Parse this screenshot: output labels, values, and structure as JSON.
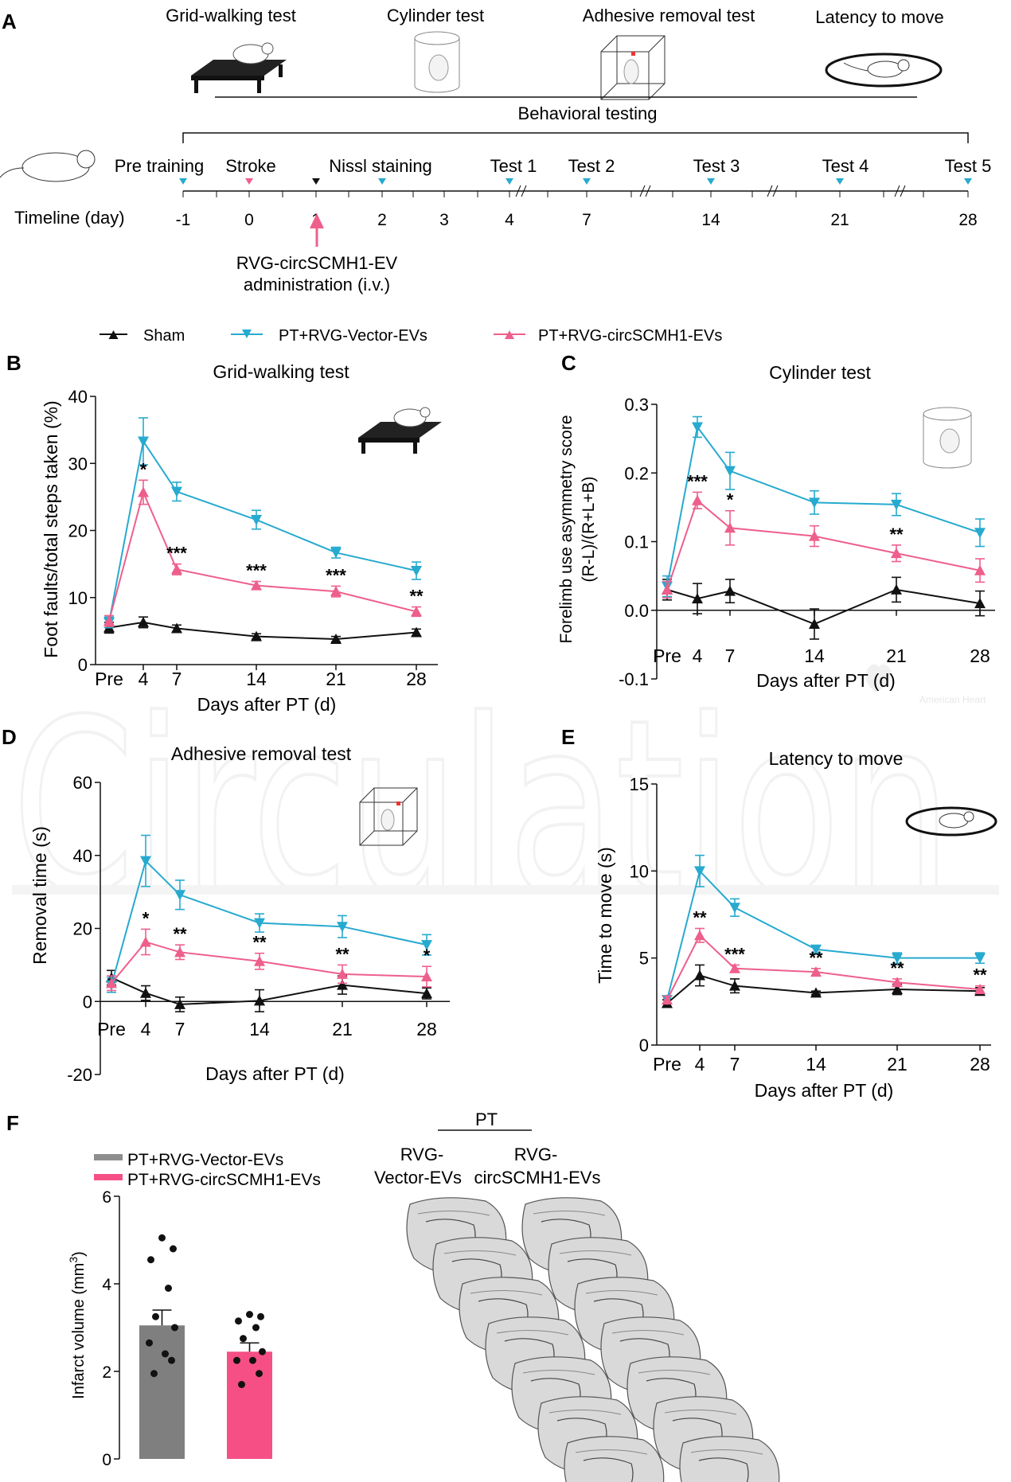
{
  "panel_letters": {
    "A": "A",
    "B": "B",
    "C": "C",
    "D": "D",
    "E": "E",
    "F": "F"
  },
  "watermark": {
    "text": "Circulation",
    "brand": "American Heart"
  },
  "colors": {
    "sham": "#111111",
    "vector": "#27aacf",
    "circ": "#ee5f8c",
    "bar_vector": "#7f7f7f",
    "bar_circ": "#f54f85"
  },
  "icons": [
    "grid-walking-apparatus-icon",
    "cylinder-test-icon",
    "adhesive-removal-box-icon",
    "latency-to-move-icon",
    "mouse-icon",
    "administration-arrow-icon"
  ],
  "panelA": {
    "tests": [
      "Grid-walking test",
      "Cylinder test",
      "Adhesive removal  test",
      "Latency to move"
    ],
    "behavioral": "Behavioral testing",
    "events": [
      "Pre training",
      "Stroke",
      "Nissl staining",
      "Test 1",
      "Test 2",
      "Test 3",
      "Test 4",
      "Test 5"
    ],
    "timeline_label": "Timeline (day)",
    "days": [
      "-1",
      "0",
      "1",
      "2",
      "3",
      "4",
      "7",
      "14",
      "21",
      "28"
    ],
    "admin_line1": "RVG-circSCMH1-EV",
    "admin_line2": "administration (i.v.)"
  },
  "legend": {
    "sham": "Sham",
    "vector": "PT+RVG-Vector-EVs",
    "circ": "PT+RVG-circSCMH1-EVs"
  },
  "chart_data": [
    {
      "panel": "B",
      "type": "line",
      "title": "Grid-walking test",
      "xlabel": "Days after PT (d)",
      "ylabel": "Foot faults/total steps taken (%)",
      "categories": [
        "Pre",
        "4",
        "7",
        "14",
        "21",
        "28"
      ],
      "ylim": [
        0,
        40
      ],
      "yticks": [
        "0",
        "10",
        "20",
        "30",
        "40"
      ],
      "series": [
        {
          "name": "Sham",
          "values": [
            5.5,
            6.3,
            5.4,
            4.2,
            3.8,
            4.8
          ],
          "err": [
            0.8,
            0.8,
            0.5,
            0.4,
            0.4,
            0.5
          ]
        },
        {
          "name": "PT+RVG-Vector-EVs",
          "values": [
            6.3,
            33.3,
            25.8,
            21.6,
            16.7,
            14.0
          ],
          "err": [
            0.8,
            3.5,
            1.4,
            1.4,
            0.8,
            1.3
          ]
        },
        {
          "name": "PT+RVG-circSCMH1-EVs",
          "values": [
            6.5,
            25.7,
            14.2,
            11.8,
            10.9,
            7.9
          ],
          "err": [
            0.8,
            1.8,
            0.8,
            0.6,
            0.8,
            0.7
          ]
        }
      ],
      "significance": [
        "",
        "*",
        "***",
        "***",
        "***",
        "**"
      ]
    },
    {
      "panel": "C",
      "type": "line",
      "title": "Cylinder test",
      "xlabel": "Days after PT (d)",
      "ylabel_line1": "Forelimb use asymmetry score",
      "ylabel_line2": "(R-L)/(R+L+B)",
      "categories": [
        "Pre",
        "4",
        "7",
        "14",
        "21",
        "28"
      ],
      "ylim": [
        -0.1,
        0.3
      ],
      "yticks": [
        "-0.1",
        "0.0",
        "0.1",
        "0.2",
        "0.3"
      ],
      "series": [
        {
          "name": "Sham",
          "values": [
            0.03,
            0.017,
            0.028,
            -0.02,
            0.03,
            0.01
          ],
          "err": [
            0.015,
            0.022,
            0.017,
            0.022,
            0.018,
            0.018
          ]
        },
        {
          "name": "PT+RVG-Vector-EVs",
          "values": [
            0.035,
            0.267,
            0.203,
            0.157,
            0.154,
            0.113
          ],
          "err": [
            0.015,
            0.015,
            0.027,
            0.017,
            0.016,
            0.02
          ]
        },
        {
          "name": "PT+RVG-circSCMH1-EVs",
          "values": [
            0.03,
            0.16,
            0.12,
            0.108,
            0.083,
            0.058
          ],
          "err": [
            0.012,
            0.012,
            0.025,
            0.015,
            0.012,
            0.017
          ]
        }
      ],
      "significance": [
        "",
        "***",
        "*",
        "",
        "**",
        ""
      ]
    },
    {
      "panel": "D",
      "type": "line",
      "title": "Adhesive removal test",
      "xlabel": "Days after PT (d)",
      "ylabel": "Removal time (s)",
      "categories": [
        "Pre",
        "4",
        "7",
        "14",
        "21",
        "28"
      ],
      "ylim": [
        -20,
        60
      ],
      "yticks": [
        "-20",
        "0",
        "20",
        "40",
        "60"
      ],
      "series": [
        {
          "name": "Sham",
          "values": [
            6.5,
            2.3,
            -0.8,
            0.2,
            4.5,
            2.2
          ],
          "err": [
            2.0,
            2.0,
            2.0,
            3.0,
            2.5,
            1.5
          ]
        },
        {
          "name": "PT+RVG-Vector-EVs",
          "values": [
            4.5,
            38.5,
            29.2,
            21.5,
            20.5,
            15.5
          ],
          "err": [
            2.0,
            7.0,
            4.0,
            2.5,
            3.0,
            2.8
          ]
        },
        {
          "name": "PT+RVG-circSCMH1-EVs",
          "values": [
            5.0,
            16.3,
            13.5,
            11.0,
            7.5,
            6.8
          ],
          "err": [
            2.0,
            3.5,
            2.0,
            2.2,
            2.5,
            2.8
          ]
        }
      ],
      "significance": [
        "",
        "*",
        "**",
        "**",
        "**",
        "*"
      ]
    },
    {
      "panel": "E",
      "type": "line",
      "title": "Latency to move",
      "xlabel": "Days after PT (d)",
      "ylabel": "Time to move (s)",
      "categories": [
        "Pre",
        "4",
        "7",
        "14",
        "21",
        "28"
      ],
      "ylim": [
        0,
        15
      ],
      "yticks": [
        "0",
        "5",
        "10",
        "15"
      ],
      "series": [
        {
          "name": "Sham",
          "values": [
            2.4,
            4.0,
            3.4,
            3.0,
            3.2,
            3.1
          ],
          "err": [
            0.2,
            0.6,
            0.4,
            0.1,
            0.3,
            0.2
          ]
        },
        {
          "name": "PT+RVG-Vector-EVs",
          "values": [
            2.6,
            10.0,
            7.9,
            5.5,
            5.0,
            5.0
          ],
          "err": [
            0.2,
            0.9,
            0.5,
            0.2,
            0.3,
            0.3
          ]
        },
        {
          "name": "PT+RVG-circSCMH1-EVs",
          "values": [
            2.6,
            6.3,
            4.4,
            4.2,
            3.6,
            3.2
          ],
          "err": [
            0.2,
            0.4,
            0.2,
            0.2,
            0.2,
            0.2
          ]
        }
      ],
      "significance": [
        "",
        "**",
        "***",
        "**",
        "**",
        "**"
      ]
    },
    {
      "panel": "F",
      "type": "bar",
      "ylabel_main": "Infarct volume (mm",
      "ylabel_sup": "3",
      "ylabel_end": ")",
      "categories": [
        "PT+RVG-Vector-EVs",
        "PT+RVG-circSCMH1-EVs"
      ],
      "values": [
        3.05,
        2.45
      ],
      "err": [
        0.35,
        0.2
      ],
      "ylim": [
        0,
        6
      ],
      "yticks": [
        "0",
        "2",
        "4",
        "6"
      ],
      "points": [
        [
          5.05,
          4.8,
          4.55,
          3.9,
          3.25,
          3.0,
          2.65,
          2.4,
          2.25,
          1.95
        ],
        [
          3.3,
          3.25,
          3.15,
          3.0,
          2.75,
          2.45,
          2.25,
          2.25,
          1.95,
          1.7
        ]
      ]
    }
  ],
  "panelF": {
    "pt_label": "PT",
    "col1_line1": "RVG-",
    "col1_line2": "Vector-EVs",
    "col2_line1": "RVG-",
    "col2_line2": "circSCMH1-EVs"
  }
}
